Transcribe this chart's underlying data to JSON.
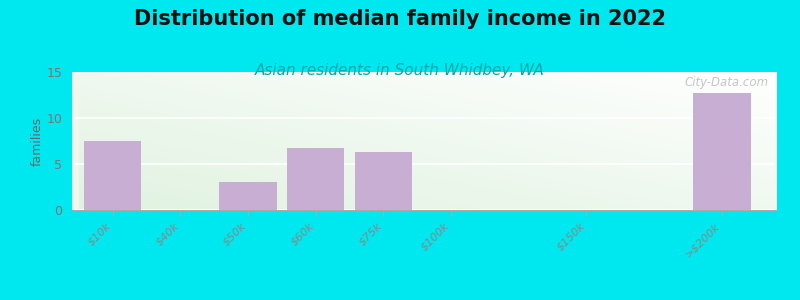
{
  "title": "Distribution of median family income in 2022",
  "subtitle": "Asian residents in South Whidbey, WA",
  "categories": [
    "$10k",
    "$40k",
    "$50k",
    "$60k",
    "$75k",
    "$100k",
    "$150k",
    ">$200k"
  ],
  "values": [
    7.5,
    0,
    3.0,
    6.7,
    6.3,
    0,
    0,
    12.7
  ],
  "bar_color": "#c9aed4",
  "ylabel": "families",
  "ylim": [
    0,
    15
  ],
  "yticks": [
    0,
    5,
    10,
    15
  ],
  "background_outer": "#00e8ef",
  "title_fontsize": 15,
  "subtitle_fontsize": 11,
  "subtitle_color": "#00aaaa",
  "watermark": "City-Data.com",
  "bar_positions": [
    0,
    1,
    2,
    3,
    4,
    5,
    7,
    9
  ],
  "bar_width": 0.85
}
